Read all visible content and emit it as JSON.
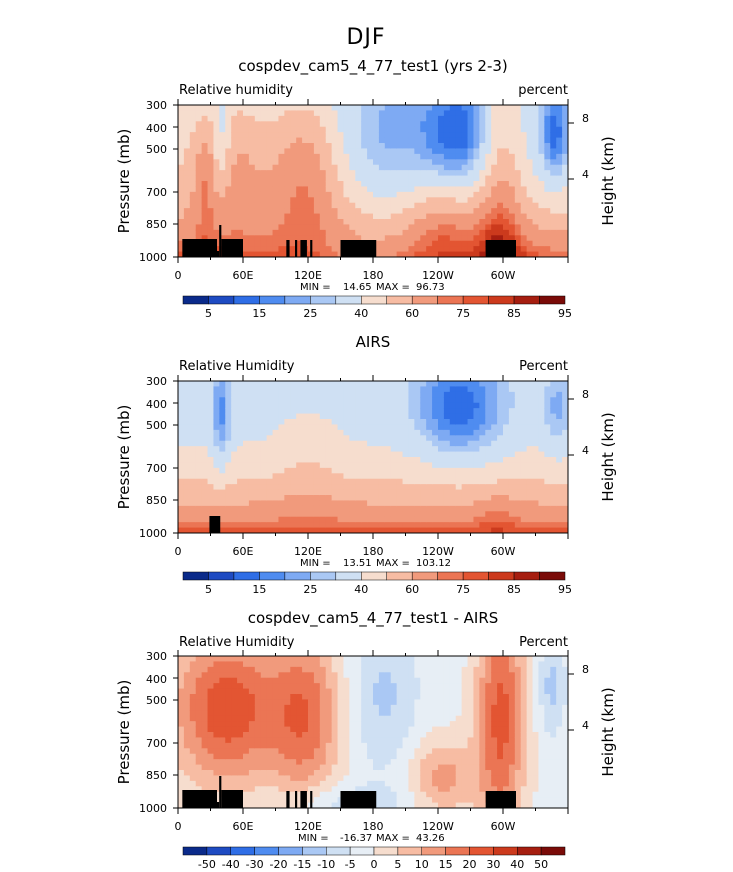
{
  "figure": {
    "title": "DJF"
  },
  "colormaps": {
    "abs": [
      "#0a2a8a",
      "#1e4bc2",
      "#2f6ee6",
      "#4f8cf0",
      "#7eaaf3",
      "#aac8f4",
      "#cfe0f3",
      "#f6ddce",
      "#f7bca3",
      "#f19a7c",
      "#eb7554",
      "#e35532",
      "#cc3a1d",
      "#a61e10",
      "#7a0b08"
    ],
    "diff": [
      "#0a2a8a",
      "#1e4bc2",
      "#2f6ee6",
      "#4f8cf0",
      "#7eaaf3",
      "#aac8f4",
      "#cfe0f3",
      "#e7eef5",
      "#f6ddce",
      "#f7bca3",
      "#f19a7c",
      "#eb7554",
      "#e35532",
      "#cc3a1d",
      "#a61e10",
      "#7a0b08"
    ]
  },
  "chart_data": [
    {
      "type": "heatmap",
      "title": "cospdev_cam5_4_77_test1 (yrs 2-3)",
      "left_label": "Relative humidity",
      "right_label": "percent",
      "ylabel": "Pressure (mb)",
      "ylabel_right": "Height (km)",
      "x_ticks": [
        "0",
        "60E",
        "120E",
        "180",
        "120W",
        "60W"
      ],
      "y_ticks": [
        "300",
        "400",
        "500",
        "700",
        "850",
        "1000"
      ],
      "y_ticks_right": [
        "8",
        "4"
      ],
      "min_label": "MIN =",
      "min": "14.65",
      "max_label": "MAX =",
      "max": "96.73",
      "colorbar_labels": [
        "5",
        "15",
        "25",
        "40",
        "60",
        "75",
        "85",
        "95"
      ],
      "colormap": "abs",
      "field": "model"
    },
    {
      "type": "heatmap",
      "title": "AIRS",
      "left_label": "Relative Humidity",
      "right_label": "Percent",
      "ylabel": "Pressure (mb)",
      "ylabel_right": "Height (km)",
      "x_ticks": [
        "0",
        "60E",
        "120E",
        "180",
        "120W",
        "60W"
      ],
      "y_ticks": [
        "300",
        "400",
        "500",
        "700",
        "850",
        "1000"
      ],
      "y_ticks_right": [
        "8",
        "4"
      ],
      "min_label": "MIN =",
      "min": "13.51",
      "max_label": "MAX =",
      "max": "103.12",
      "colorbar_labels": [
        "5",
        "15",
        "25",
        "40",
        "60",
        "75",
        "85",
        "95"
      ],
      "colormap": "abs",
      "field": "obs"
    },
    {
      "type": "heatmap",
      "title": "cospdev_cam5_4_77_test1 - AIRS",
      "left_label": "Relative Humidity",
      "right_label": "Percent",
      "ylabel": "Pressure (mb)",
      "ylabel_right": "Height (km)",
      "x_ticks": [
        "0",
        "60E",
        "120E",
        "180",
        "120W",
        "60W"
      ],
      "y_ticks": [
        "300",
        "400",
        "500",
        "700",
        "850",
        "1000"
      ],
      "y_ticks_right": [
        "8",
        "4"
      ],
      "min_label": "MIN =",
      "min": "-16.37",
      "max_label": "MAX =",
      "max": "43.26",
      "colorbar_labels": [
        "-50",
        "-40",
        "-30",
        "-20",
        "-15",
        "-10",
        "-5",
        "0",
        "5",
        "10",
        "15",
        "20",
        "30",
        "40",
        "50"
      ],
      "colormap": "diff",
      "field": "diff"
    }
  ]
}
